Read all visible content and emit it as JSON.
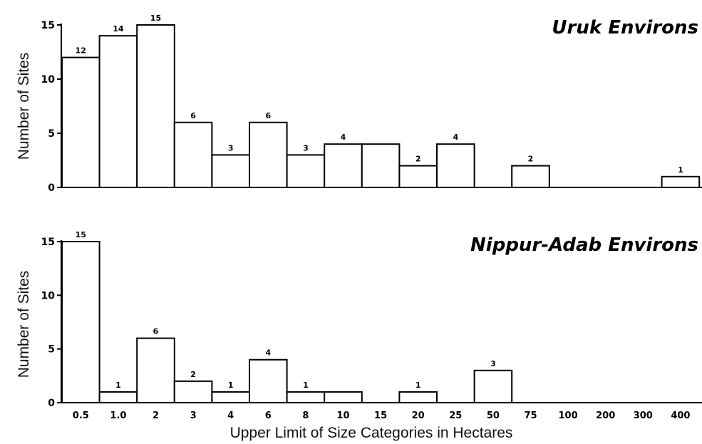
{
  "chart_data": [
    {
      "type": "bar",
      "title": "Uruk Environs",
      "ylabel": "Number of Sites",
      "xlabel": "",
      "ylim": [
        0,
        15
      ],
      "yticks": [
        0,
        5,
        10,
        15
      ],
      "categories": [
        "0.5",
        "1.0",
        "2",
        "3",
        "4",
        "6",
        "8",
        "10",
        "15",
        "20",
        "25",
        "50",
        "75",
        "100",
        "200",
        "300",
        "400"
      ],
      "values": [
        12,
        14,
        15,
        6,
        3,
        6,
        3,
        4,
        4,
        2,
        4,
        0,
        2,
        0,
        0,
        0,
        1
      ],
      "data_labels": [
        "12",
        "14",
        "15",
        "6",
        "3",
        "6",
        "3",
        "4",
        "",
        "2",
        "4",
        "",
        "2",
        "",
        "",
        "",
        "1"
      ],
      "grid": false,
      "bar_color": "#ffffff"
    },
    {
      "type": "bar",
      "title": "Nippur-Adab Environs",
      "ylabel": "Number of Sites",
      "xlabel": "Upper Limit of Size Categories in Hectares",
      "ylim": [
        0,
        15
      ],
      "yticks": [
        0,
        5,
        10,
        15
      ],
      "categories": [
        "0.5",
        "1.0",
        "2",
        "3",
        "4",
        "6",
        "8",
        "10",
        "15",
        "20",
        "25",
        "50",
        "75",
        "100",
        "200",
        "300",
        "400"
      ],
      "values": [
        15,
        1,
        6,
        2,
        1,
        4,
        1,
        1,
        0,
        1,
        0,
        3,
        0,
        0,
        0,
        0,
        0
      ],
      "data_labels": [
        "15",
        "1",
        "6",
        "2",
        "1",
        "4",
        "1",
        "",
        "",
        "1",
        "",
        "3",
        "",
        "",
        "",
        "",
        ""
      ],
      "grid": false,
      "bar_color": "#ffffff"
    }
  ]
}
